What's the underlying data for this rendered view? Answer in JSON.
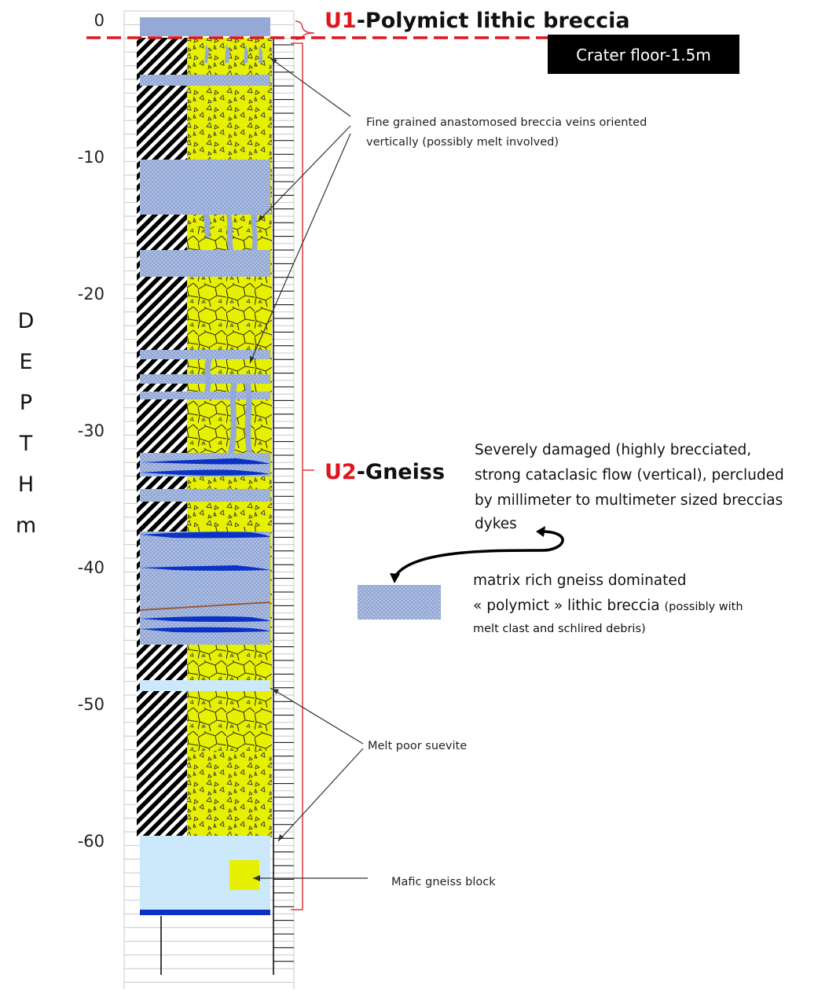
{
  "axis": {
    "ticks": [
      "0",
      "-10",
      "-20",
      "-30",
      "-40",
      "-50",
      "-60"
    ],
    "title_letters": [
      "D",
      "E",
      "P",
      "T",
      "H",
      "m"
    ]
  },
  "units": [
    {
      "code": "U1",
      "name": "-Polymict lithic breccia"
    },
    {
      "code": "U2",
      "name": "-Gneiss"
    }
  ],
  "crater_floor": "Crater floor-1.5m",
  "annotations": {
    "veins": [
      "Fine grained anastomosed breccia veins oriented",
      "vertically (possibly  melt involved)"
    ],
    "damaged": [
      "Severely damaged (highly brecciated,",
      "strong cataclasic flow (vertical), percluded",
      "by millimeter to multimeter sized breccias",
      "dykes"
    ],
    "legend_line1": "matrix rich gneiss dominated",
    "legend_line2_main": "« polymict » lithic breccia ",
    "legend_line2_small": " (possibly with",
    "legend_line3": "melt clast and schlired debris)",
    "melt_poor": "Melt poor suevite",
    "mafic": "Mafic gneiss block"
  },
  "colors": {
    "suevite": "#e6f000",
    "breccia_matrix": "#94a9d6",
    "breccia_dot": "#c9d6ee",
    "dark_vein": "#0a33c6",
    "light_blue": "#cce9fb",
    "unit_red": "#e0161e",
    "bracket_red": "#e03a3a"
  }
}
